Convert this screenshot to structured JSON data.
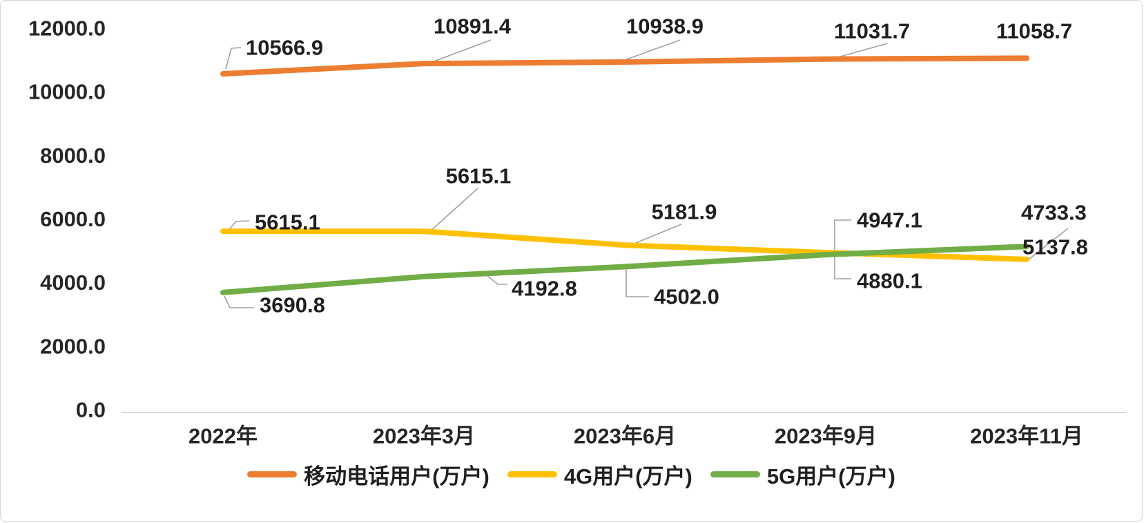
{
  "chart_data": {
    "type": "line",
    "title": "",
    "xlabel": "",
    "ylabel": "",
    "categories": [
      "2022年",
      "2023年3月",
      "2023年6月",
      "2023年9月",
      "2023年11月"
    ],
    "series": [
      {
        "name": "移动电话用户(万户)",
        "color": "#ED7D31",
        "values": [
          10566.9,
          10891.4,
          10938.9,
          11031.7,
          11058.7
        ],
        "labels": [
          "10566.9",
          "10891.4",
          "10938.9",
          "11031.7",
          "11058.7"
        ]
      },
      {
        "name": "4G用户(万户)",
        "color": "#FFC000",
        "values": [
          5615.1,
          5615.1,
          5181.9,
          4947.1,
          4733.3
        ],
        "labels": [
          "5615.1",
          "5615.1",
          "5181.9",
          "4947.1",
          "4733.3"
        ]
      },
      {
        "name": "5G用户(万户)",
        "color": "#70AD47",
        "values": [
          3690.8,
          4192.8,
          4502.0,
          4880.1,
          5137.8
        ],
        "labels": [
          "3690.8",
          "4192.8",
          "4502.0",
          "4880.1",
          "5137.8"
        ]
      }
    ],
    "y_axis": {
      "ticks": [
        0,
        2000,
        4000,
        6000,
        8000,
        10000,
        12000
      ],
      "tick_labels": [
        "0.0",
        "2000.0",
        "4000.0",
        "6000.0",
        "8000.0",
        "10000.0",
        "12000.0"
      ]
    },
    "ylim": [
      0,
      12000
    ],
    "grid": false,
    "legend_position": "bottom",
    "axis_line_color": "#d9d9d9",
    "leader_line_color": "#a0a0a0"
  }
}
